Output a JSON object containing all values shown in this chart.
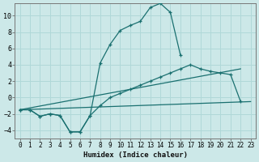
{
  "xlabel": "Humidex (Indice chaleur)",
  "background_color": "#cce8e8",
  "grid_color": "#b0d8d8",
  "line_color": "#1a7070",
  "xlim": [
    -0.5,
    23.5
  ],
  "ylim": [
    -5.0,
    11.5
  ],
  "xticks": [
    0,
    1,
    2,
    3,
    4,
    5,
    6,
    7,
    8,
    9,
    10,
    11,
    12,
    13,
    14,
    15,
    16,
    17,
    18,
    19,
    20,
    21,
    22,
    23
  ],
  "yticks": [
    -4,
    -2,
    0,
    2,
    4,
    6,
    8,
    10
  ],
  "series": [
    {
      "x": [
        0,
        1,
        2,
        3,
        4,
        5,
        6,
        7,
        8,
        9,
        10,
        11,
        12,
        13,
        14,
        15,
        16,
        17,
        18,
        19,
        20,
        21,
        22,
        23
      ],
      "y": [
        -1.5,
        -1.5,
        -2.3,
        -2.0,
        -2.2,
        -4.2,
        -4.2,
        -2.2,
        4.2,
        6.5,
        8.2,
        8.8,
        9.3,
        11.0,
        11.5,
        10.4,
        5.2,
        null,
        null,
        null,
        null,
        null,
        null,
        null
      ]
    },
    {
      "x": [
        0,
        1,
        2,
        3,
        4,
        5,
        6,
        7,
        8,
        9,
        10,
        11,
        12,
        13,
        14,
        15,
        16,
        17,
        18,
        19,
        20,
        21,
        22,
        23
      ],
      "y": [
        -1.5,
        -1.5,
        -2.3,
        -2.0,
        -2.2,
        -4.2,
        -4.2,
        -2.2,
        -1.0,
        0.0,
        0.5,
        1.0,
        1.5,
        2.0,
        2.5,
        3.0,
        3.5,
        4.0,
        3.5,
        3.2,
        3.0,
        2.8,
        -0.5,
        null
      ]
    },
    {
      "x": [
        0,
        22
      ],
      "y": [
        -1.5,
        3.5
      ]
    },
    {
      "x": [
        0,
        23
      ],
      "y": [
        -1.5,
        -0.5
      ]
    }
  ]
}
